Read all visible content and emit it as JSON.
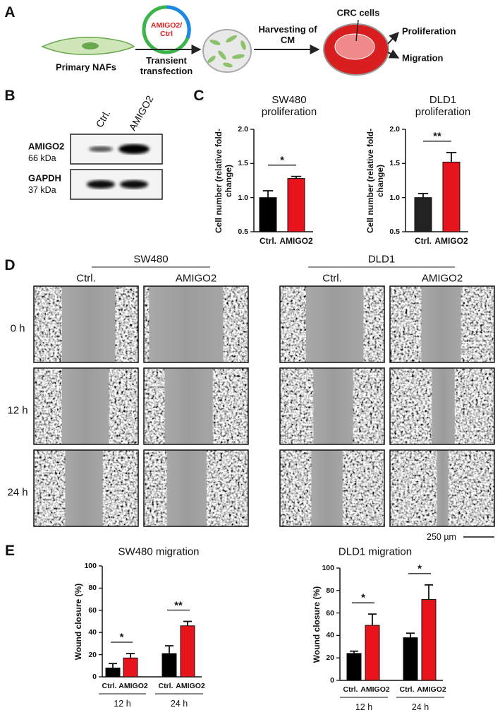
{
  "panel_labels": [
    "A",
    "B",
    "C",
    "D",
    "E"
  ],
  "schematic": {
    "plasmid": "AMIGO2/ Ctrl",
    "cells": "Primary NAFs",
    "step1": "Transient transfection",
    "step2": "Harvesting of CM",
    "target": "CRC cells",
    "outputs": [
      "Proliferation",
      "Migration"
    ]
  },
  "blot": {
    "lanes": [
      "Ctrl.",
      "AMIGO2"
    ],
    "rows": [
      {
        "protein": "AMIGO2",
        "size": "66 kDa"
      },
      {
        "protein": "GAPDH",
        "size": "37 kDa"
      }
    ]
  },
  "wound": {
    "lines": [
      {
        "name": "SW480",
        "conditions": [
          "Ctrl.",
          "AMIGO2"
        ]
      },
      {
        "name": "DLD1",
        "conditions": [
          "Ctrl.",
          "AMIGO2"
        ]
      }
    ],
    "timepoints": [
      "0 h",
      "12 h",
      "24 h"
    ],
    "scale_bar": "250 µm"
  },
  "chart_data": [
    {
      "type": "bar",
      "title": "SW480 proliferation",
      "ylabel": "Cell number (relative fold-change)",
      "categories": [
        "Ctrl.",
        "AMIGO2"
      ],
      "values": [
        1.0,
        1.28
      ],
      "errors": [
        0.1,
        0.03
      ],
      "colors": [
        "#000000",
        "#e8141b"
      ],
      "ylim": [
        0.5,
        2.0
      ],
      "yticks": [
        0.5,
        {
          "value": 1,
          "label": "1.0"
        },
        1.5,
        {
          "value": 2,
          "label": "2.0"
        }
      ],
      "significance": "*"
    },
    {
      "type": "bar",
      "title": "DLD1 proliferation",
      "ylabel": "Cell number (relative fold-change)",
      "categories": [
        "Ctrl.",
        "AMIGO2"
      ],
      "values": [
        1.0,
        1.52
      ],
      "errors": [
        0.06,
        0.14
      ],
      "colors": [
        "#222222",
        "#e8141b"
      ],
      "ylim": [
        0.5,
        2.0
      ],
      "yticks": [
        0.5,
        {
          "value": 1,
          "label": "1.0"
        },
        1.5,
        {
          "value": 2,
          "label": "2.0"
        }
      ],
      "significance": "**"
    },
    {
      "type": "grouped_bar",
      "title": "SW480 migration",
      "ylabel": "Wound closure (%)",
      "groups": [
        "12 h",
        "24 h"
      ],
      "series": [
        {
          "name": "Ctrl.",
          "color": "#000000",
          "values": [
            8,
            21
          ],
          "errors": [
            4,
            7
          ]
        },
        {
          "name": "AMIGO2",
          "color": "#e8141b",
          "values": [
            17,
            46
          ],
          "errors": [
            4,
            4
          ]
        }
      ],
      "ylim": [
        0,
        100
      ],
      "yticks": [
        0,
        20,
        40,
        60,
        80,
        100
      ],
      "significance": [
        "*",
        "**"
      ]
    },
    {
      "type": "grouped_bar",
      "title": "DLD1 migration",
      "ylabel": "Wound closure (%)",
      "groups": [
        "12 h",
        "24 h"
      ],
      "series": [
        {
          "name": "Ctrl.",
          "color": "#000000",
          "values": [
            24,
            38
          ],
          "errors": [
            2,
            4
          ]
        },
        {
          "name": "AMIGO2",
          "color": "#e8141b",
          "values": [
            49,
            72
          ],
          "errors": [
            10,
            13
          ]
        }
      ],
      "ylim": [
        0,
        100
      ],
      "yticks": [
        0,
        20,
        40,
        60,
        80,
        100
      ],
      "significance": [
        "*",
        "*"
      ]
    }
  ]
}
